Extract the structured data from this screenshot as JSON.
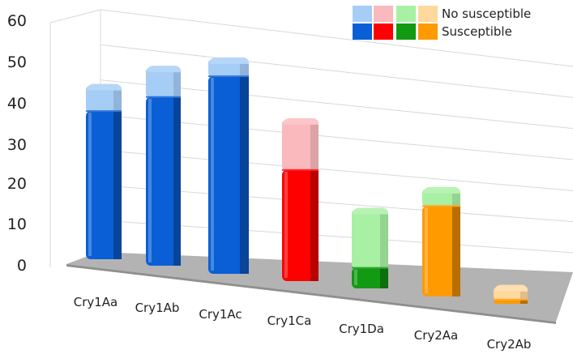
{
  "chart_data": {
    "type": "bar",
    "stacked": true,
    "three_d": true,
    "categories": [
      "Cry1Aa",
      "Cry1Ab",
      "Cry1Ac",
      "Cry1Ca",
      "Cry1Da",
      "Cry2Aa",
      "Cry2Ab"
    ],
    "series": [
      {
        "name": "Susceptible",
        "values": [
          36,
          41,
          48,
          27,
          5,
          22,
          1
        ]
      },
      {
        "name": "No susceptible",
        "values": [
          6,
          7,
          4,
          12,
          14,
          4,
          3
        ]
      }
    ],
    "bar_colors": {
      "Susceptible": [
        "#0a5fd6",
        "#0a5fd6",
        "#0a5fd6",
        "#ff0000",
        "#129a12",
        "#ff9a00",
        "#ff9a00"
      ],
      "No susceptible": [
        "#a6cdf5",
        "#a6cdf5",
        "#a6cdf5",
        "#f9b9bd",
        "#a8f0a4",
        "#a8f0a4",
        "#ffd89e"
      ]
    },
    "legend": {
      "position": "top-right",
      "rows": [
        {
          "label": "No susceptible",
          "swatches": [
            "#a6cdf5",
            "#f9b9bd",
            "#a8f0a4",
            "#ffd89e"
          ]
        },
        {
          "label": "Susceptible",
          "swatches": [
            "#0a5fd6",
            "#ff0000",
            "#129a12",
            "#ff9a00"
          ]
        }
      ]
    },
    "y_ticks": [
      0,
      10,
      20,
      30,
      40,
      50,
      60
    ],
    "ylim": [
      0,
      60
    ],
    "grid": true,
    "title": "",
    "xlabel": "",
    "ylabel": ""
  }
}
